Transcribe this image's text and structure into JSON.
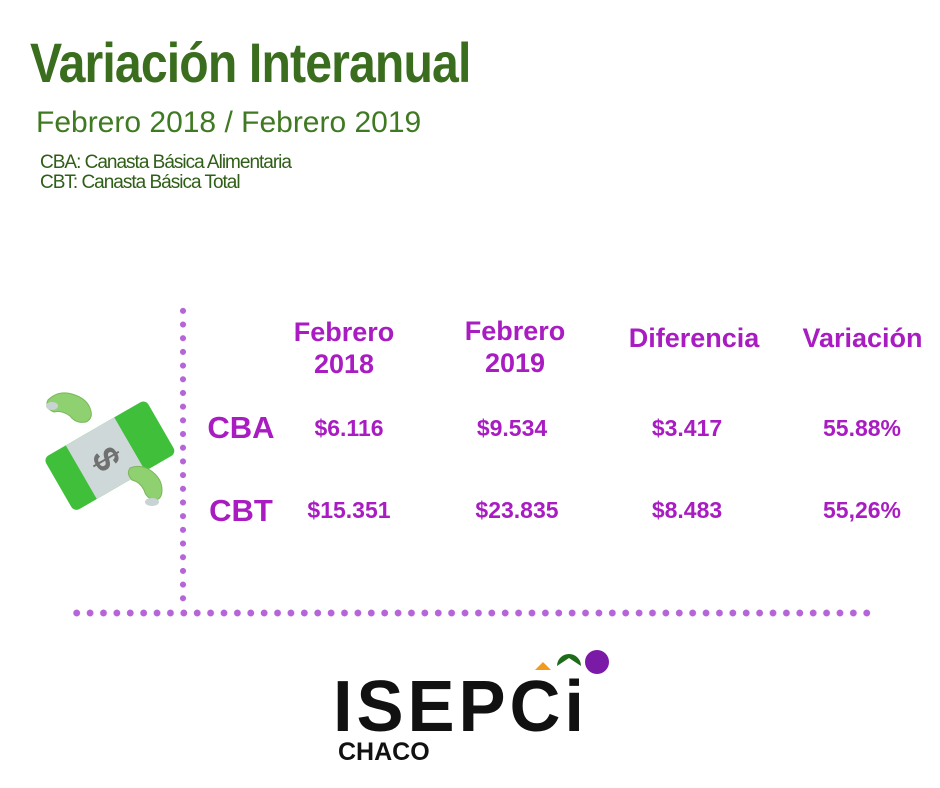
{
  "header": {
    "title": "Variación Interanual",
    "subtitle": "Febrero 2018 / Febrero 2019",
    "legend": [
      "CBA: Canasta Básica Alimentaria",
      "CBT: Canasta Básica Total"
    ]
  },
  "table": {
    "columns": [
      {
        "line1": "Febrero",
        "line2": "2018"
      },
      {
        "line1": "Febrero",
        "line2": "2019"
      },
      {
        "line1": "Diferencia",
        "line2": ""
      },
      {
        "line1": "Variación",
        "line2": ""
      }
    ],
    "rows": [
      {
        "label": "CBA",
        "cells": [
          "$6.116",
          "$9.534",
          "$3.417",
          "55.88%"
        ]
      },
      {
        "label": "CBT",
        "cells": [
          "$15.351",
          "$23.835",
          "$8.483",
          "55,26%"
        ]
      }
    ]
  },
  "icons": {
    "money": "flying-money-icon",
    "logo_marks": "isepci-dots-icon"
  },
  "logo": {
    "name": "ISEPCi",
    "region": "CHACO"
  },
  "colors": {
    "title_green": "#3a6e1e",
    "accent_purple": "#a81cc2",
    "dots_purple": "#b565d8",
    "bill_green": "#3fbf3a",
    "logo_orange": "#f29a1e",
    "logo_darkgreen": "#1e6b1a",
    "logo_purple": "#7a1aa6"
  }
}
